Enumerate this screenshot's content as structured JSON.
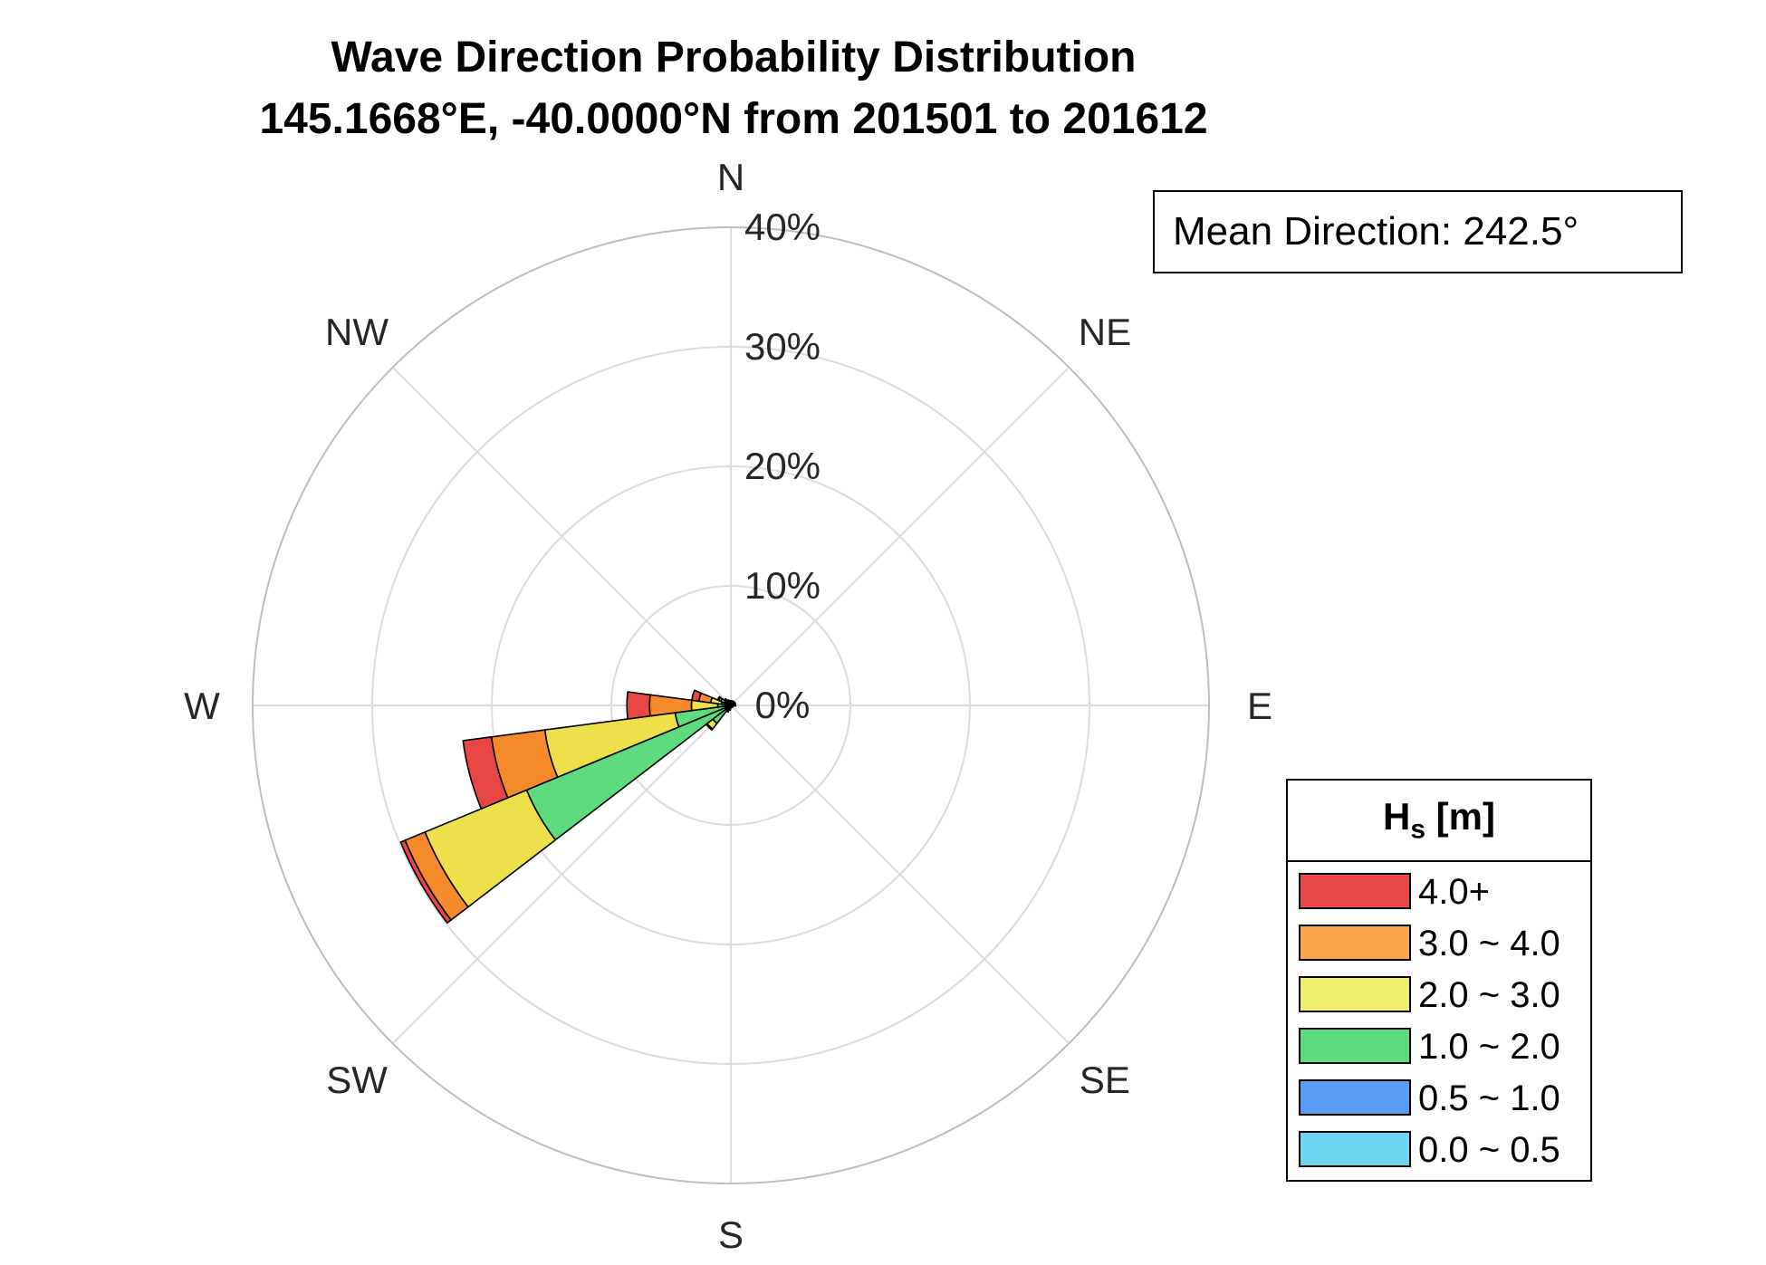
{
  "title_line1": "Wave Direction Probability Distribution",
  "title_line2": "145.1668°E, -40.0000°N from 201501 to 201612",
  "mean_direction_text": "Mean Direction: 242.5°",
  "legend": {
    "title_main": "H",
    "title_sub": "s",
    "title_unit": " [m]",
    "items": [
      {
        "label": "4.0+",
        "color": "#e84545"
      },
      {
        "label": "3.0 ~ 4.0",
        "color": "#f9a64a"
      },
      {
        "label": "2.0 ~ 3.0",
        "color": "#eded6e"
      },
      {
        "label": "1.0 ~ 2.0",
        "color": "#5fdb7f"
      },
      {
        "label": "0.5 ~ 1.0",
        "color": "#5b9bf2"
      },
      {
        "label": "0.0 ~ 0.5",
        "color": "#6fd6f2"
      }
    ]
  },
  "chart_data": {
    "type": "wind-rose",
    "title": "Wave Direction Probability Distribution 145.1668°E, -40.0000°N from 201501 to 201612",
    "directions": [
      "N",
      "NE",
      "E",
      "SE",
      "S",
      "SW",
      "W",
      "NW"
    ],
    "radial_ticks": [
      "0%",
      "10%",
      "20%",
      "30%",
      "40%"
    ],
    "rmax": 40,
    "sector_width_deg": 15,
    "stack_order": [
      "0.0 ~ 0.5",
      "0.5 ~ 1.0",
      "1.0 ~ 2.0",
      "2.0 ~ 3.0",
      "3.0 ~ 4.0",
      "4.0+"
    ],
    "colors": [
      "#6fd6f2",
      "#5b9bf2",
      "#5fdb7f",
      "#ede04a",
      "#f58a2a",
      "#e84545"
    ],
    "sectors": [
      {
        "dir": 240,
        "values": [
          0.0,
          0.2,
          18.3,
          9.2,
          1.8,
          0.4
        ]
      },
      {
        "dir": 255,
        "values": [
          0.0,
          0.2,
          4.5,
          11.0,
          4.5,
          2.4
        ]
      },
      {
        "dir": 270,
        "values": [
          0.0,
          0.1,
          1.0,
          2.2,
          3.5,
          1.9
        ]
      },
      {
        "dir": 285,
        "values": [
          0.0,
          0.1,
          0.7,
          0.9,
          1.0,
          0.6
        ]
      },
      {
        "dir": 225,
        "values": [
          0.0,
          0.1,
          1.8,
          0.6,
          0.1,
          0.0
        ]
      },
      {
        "dir": 300,
        "values": [
          0.0,
          0.1,
          0.5,
          0.3,
          0.2,
          0.1
        ]
      },
      {
        "dir": 315,
        "values": [
          0.0,
          0.1,
          0.3,
          0.2,
          0.1,
          0.0
        ]
      },
      {
        "dir": 0,
        "values": [
          0.0,
          0.1,
          0.2,
          0.1,
          0.0,
          0.0
        ]
      },
      {
        "dir": 15,
        "values": [
          0.0,
          0.1,
          0.2,
          0.1,
          0.0,
          0.0
        ]
      },
      {
        "dir": 30,
        "values": [
          0.0,
          0.1,
          0.2,
          0.1,
          0.0,
          0.0
        ]
      },
      {
        "dir": 45,
        "values": [
          0.0,
          0.1,
          0.2,
          0.1,
          0.0,
          0.0
        ]
      },
      {
        "dir": 60,
        "values": [
          0.0,
          0.1,
          0.2,
          0.1,
          0.0,
          0.0
        ]
      },
      {
        "dir": 75,
        "values": [
          0.0,
          0.1,
          0.2,
          0.1,
          0.0,
          0.0
        ]
      },
      {
        "dir": 90,
        "values": [
          0.0,
          0.1,
          0.2,
          0.1,
          0.0,
          0.0
        ]
      },
      {
        "dir": 105,
        "values": [
          0.0,
          0.1,
          0.1,
          0.0,
          0.0,
          0.0
        ]
      },
      {
        "dir": 120,
        "values": [
          0.0,
          0.1,
          0.1,
          0.0,
          0.0,
          0.0
        ]
      },
      {
        "dir": 135,
        "values": [
          0.0,
          0.1,
          0.1,
          0.0,
          0.0,
          0.0
        ]
      },
      {
        "dir": 150,
        "values": [
          0.0,
          0.1,
          0.1,
          0.0,
          0.0,
          0.0
        ]
      },
      {
        "dir": 165,
        "values": [
          0.0,
          0.1,
          0.1,
          0.0,
          0.0,
          0.0
        ]
      },
      {
        "dir": 180,
        "values": [
          0.0,
          0.1,
          0.1,
          0.0,
          0.0,
          0.0
        ]
      },
      {
        "dir": 195,
        "values": [
          0.0,
          0.1,
          0.2,
          0.1,
          0.0,
          0.0
        ]
      },
      {
        "dir": 210,
        "values": [
          0.0,
          0.1,
          0.3,
          0.2,
          0.0,
          0.0
        ]
      },
      {
        "dir": 330,
        "values": [
          0.0,
          0.1,
          0.3,
          0.1,
          0.0,
          0.0
        ]
      },
      {
        "dir": 345,
        "values": [
          0.0,
          0.1,
          0.2,
          0.1,
          0.0,
          0.0
        ]
      }
    ],
    "mean_direction_deg": 242.5
  }
}
